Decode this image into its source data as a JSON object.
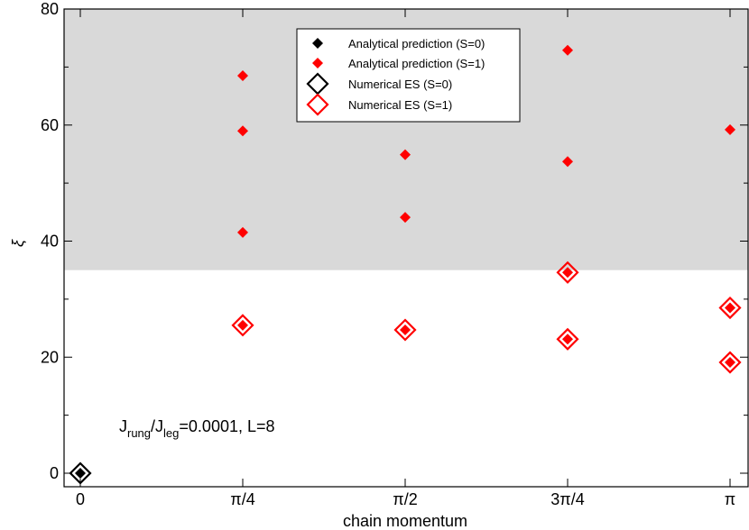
{
  "chart_data": {
    "type": "scatter",
    "xlabel": "chain momentum",
    "ylabel": "ξ",
    "xlim": [
      0,
      1
    ],
    "ylim": [
      -2,
      80
    ],
    "x_ticks": [
      {
        "value": 0,
        "label": "0"
      },
      {
        "value": 0.25,
        "label": "π/4"
      },
      {
        "value": 0.5,
        "label": "π/2"
      },
      {
        "value": 0.75,
        "label": "3π/4"
      },
      {
        "value": 1,
        "label": "π"
      }
    ],
    "y_ticks": [
      0,
      20,
      40,
      60,
      80
    ],
    "shaded_region": {
      "y_from": 35,
      "y_to": 80,
      "color": "#d9d9d9"
    },
    "annotation": {
      "base": "J",
      "sub1": "rung",
      "slash": "/J",
      "sub2": "leg",
      "rest": "=0.0001, L=8"
    },
    "legend_position": "top-center",
    "series": [
      {
        "name": "Analytical prediction (S=0)",
        "marker": "filled-diamond",
        "color": "#000000",
        "points": [
          {
            "x": 0,
            "y": 0
          }
        ]
      },
      {
        "name": "Analytical prediction (S=1)",
        "marker": "filled-diamond",
        "color": "#ff0000",
        "points": [
          {
            "x": 0.25,
            "y": 68.5
          },
          {
            "x": 0.25,
            "y": 59.0
          },
          {
            "x": 0.25,
            "y": 41.5
          },
          {
            "x": 0.25,
            "y": 25.5
          },
          {
            "x": 0.5,
            "y": 54.9
          },
          {
            "x": 0.5,
            "y": 44.1
          },
          {
            "x": 0.5,
            "y": 24.7
          },
          {
            "x": 0.75,
            "y": 72.9
          },
          {
            "x": 0.75,
            "y": 53.7
          },
          {
            "x": 0.75,
            "y": 34.6
          },
          {
            "x": 0.75,
            "y": 23.1
          },
          {
            "x": 1,
            "y": 59.2
          },
          {
            "x": 1,
            "y": 28.5
          },
          {
            "x": 1,
            "y": 19.1
          }
        ]
      },
      {
        "name": "Numerical ES (S=0)",
        "marker": "open-diamond",
        "color": "#000000",
        "points": [
          {
            "x": 0,
            "y": 0
          }
        ]
      },
      {
        "name": "Numerical ES (S=1)",
        "marker": "open-diamond",
        "color": "#ff0000",
        "points": [
          {
            "x": 0.25,
            "y": 25.5
          },
          {
            "x": 0.5,
            "y": 24.7
          },
          {
            "x": 0.75,
            "y": 34.6
          },
          {
            "x": 0.75,
            "y": 23.1
          },
          {
            "x": 1,
            "y": 28.5
          },
          {
            "x": 1,
            "y": 19.1
          }
        ]
      }
    ]
  }
}
